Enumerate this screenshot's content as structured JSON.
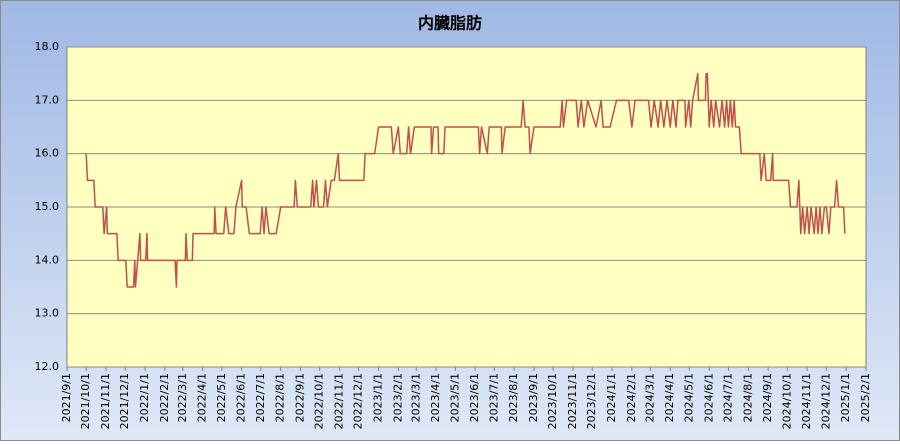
{
  "chart_data": {
    "type": "line",
    "title": "内臓脂肪",
    "color": "#c0504d",
    "grid": true,
    "ylim": [
      12,
      18
    ],
    "yticks": [
      {
        "value": 12,
        "label": "12.0"
      },
      {
        "value": 13,
        "label": "13.0"
      },
      {
        "value": 14,
        "label": "14.0"
      },
      {
        "value": 15,
        "label": "15.0"
      },
      {
        "value": 16,
        "label": "16.0"
      },
      {
        "value": 17,
        "label": "17.0"
      },
      {
        "value": 18,
        "label": "18.0"
      }
    ],
    "xlim": [
      "2021/9/1",
      "2025/2/1"
    ],
    "xticks": [
      "2021/9/1",
      "2021/10/1",
      "2021/11/1",
      "2021/12/1",
      "2022/1/1",
      "2022/2/1",
      "2022/3/1",
      "2022/4/1",
      "2022/5/1",
      "2022/6/1",
      "2022/7/1",
      "2022/8/1",
      "2022/9/1",
      "2022/10/1",
      "2022/11/1",
      "2022/12/1",
      "2023/1/1",
      "2023/2/1",
      "2023/3/1",
      "2023/4/1",
      "2023/5/1",
      "2023/6/1",
      "2023/7/1",
      "2023/8/1",
      "2023/9/1",
      "2023/10/1",
      "2023/11/1",
      "2023/12/1",
      "2024/1/1",
      "2024/2/1",
      "2024/3/1",
      "2024/4/1",
      "2024/5/1",
      "2024/6/1",
      "2024/7/1",
      "2024/8/1",
      "2024/9/1",
      "2024/10/1",
      "2024/11/1",
      "2024/12/1",
      "2025/1/1",
      "2025/2/1"
    ],
    "x": [
      "2021/10/1",
      "2021/10/3",
      "2021/10/13",
      "2021/10/15",
      "2021/10/27",
      "2021/10/29",
      "2021/11/2",
      "2021/11/3",
      "2021/11/18",
      "2021/11/20",
      "2021/12/2",
      "2021/12/4",
      "2021/12/14",
      "2021/12/16",
      "2021/12/17",
      "2021/12/24",
      "2021/12/25",
      "2022/1/2",
      "2022/1/4",
      "2022/1/5",
      "2022/2/17",
      "2022/2/19",
      "2022/2/20",
      "2022/3/5",
      "2022/3/6",
      "2022/3/8",
      "2022/3/16",
      "2022/3/17",
      "2022/4/19",
      "2022/4/20",
      "2022/4/22",
      "2022/5/4",
      "2022/5/7",
      "2022/5/12",
      "2022/5/20",
      "2022/5/23",
      "2022/6/1",
      "2022/6/2",
      "2022/6/8",
      "2022/6/13",
      "2022/6/30",
      "2022/7/3",
      "2022/7/6",
      "2022/7/9",
      "2022/7/14",
      "2022/7/25",
      "2022/8/1",
      "2022/8/22",
      "2022/8/24",
      "2022/8/27",
      "2022/9/17",
      "2022/9/20",
      "2022/9/22",
      "2022/9/26",
      "2022/9/29",
      "2022/10/7",
      "2022/10/10",
      "2022/10/13",
      "2022/10/19",
      "2022/10/24",
      "2022/10/30",
      "2022/11/1",
      "2022/12/9",
      "2022/12/11",
      "2022/12/26",
      "2023/1/1",
      "2023/1/21",
      "2023/1/24",
      "2023/2/1",
      "2023/2/4",
      "2023/2/14",
      "2023/2/17",
      "2023/2/20",
      "2023/2/26",
      "2023/3/24",
      "2023/3/25",
      "2023/3/28",
      "2023/4/4",
      "2023/4/5",
      "2023/4/13",
      "2023/4/15",
      "2023/6/6",
      "2023/6/8",
      "2023/6/11",
      "2023/6/20",
      "2023/6/23",
      "2023/7/12",
      "2023/7/13",
      "2023/7/18",
      "2023/8/12",
      "2023/8/15",
      "2023/8/18",
      "2023/8/24",
      "2023/8/26",
      "2023/9/1",
      "2023/10/12",
      "2023/10/15",
      "2023/10/17",
      "2023/10/22",
      "2023/11/6",
      "2023/11/9",
      "2023/11/14",
      "2023/11/18",
      "2023/11/24",
      "2023/12/7",
      "2023/12/15",
      "2023/12/18",
      "2023/12/29",
      "2024/1/8",
      "2024/1/27",
      "2024/2/1",
      "2024/2/6",
      "2024/2/27",
      "2024/3/2",
      "2024/3/7",
      "2024/3/13",
      "2024/3/17",
      "2024/3/22",
      "2024/3/27",
      "2024/4/1",
      "2024/4/5",
      "2024/4/10",
      "2024/4/13",
      "2024/4/24",
      "2024/4/25",
      "2024/4/30",
      "2024/5/3",
      "2024/5/6",
      "2024/5/14",
      "2024/5/15",
      "2024/5/26",
      "2024/5/27",
      "2024/5/29",
      "2024/6/1",
      "2024/6/4",
      "2024/6/8",
      "2024/6/11",
      "2024/6/17",
      "2024/6/21",
      "2024/6/25",
      "2024/6/28",
      "2024/7/1",
      "2024/7/4",
      "2024/7/7",
      "2024/7/10",
      "2024/7/12",
      "2024/7/18",
      "2024/7/21",
      "2024/8/19",
      "2024/8/21",
      "2024/8/26",
      "2024/8/29",
      "2024/9/5",
      "2024/9/8",
      "2024/9/9",
      "2024/10/3",
      "2024/10/6",
      "2024/10/16",
      "2024/10/19",
      "2024/10/22",
      "2024/10/25",
      "2024/10/28",
      "2024/11/1",
      "2024/11/4",
      "2024/11/7",
      "2024/11/12",
      "2024/11/15",
      "2024/11/18",
      "2024/11/21",
      "2024/11/24",
      "2024/11/28",
      "2024/12/1",
      "2024/12/5",
      "2024/12/8",
      "2024/12/14",
      "2024/12/17",
      "2024/12/20",
      "2024/12/28",
      "2024/12/30"
    ],
    "values": [
      16.0,
      15.5,
      15.5,
      15.0,
      15.0,
      14.5,
      15.0,
      14.5,
      14.5,
      14.0,
      14.0,
      13.5,
      13.5,
      14.0,
      13.5,
      14.5,
      14.0,
      14.0,
      14.5,
      14.0,
      14.0,
      13.5,
      14.0,
      14.0,
      14.5,
      14.0,
      14.0,
      14.5,
      14.5,
      15.0,
      14.5,
      14.5,
      15.0,
      14.5,
      14.5,
      15.0,
      15.5,
      15.0,
      15.0,
      14.5,
      14.5,
      15.0,
      14.5,
      15.0,
      14.5,
      14.5,
      15.0,
      15.0,
      15.5,
      15.0,
      15.0,
      15.5,
      15.0,
      15.5,
      15.0,
      15.0,
      15.5,
      15.0,
      15.5,
      15.5,
      16.0,
      15.5,
      15.5,
      16.0,
      16.0,
      16.5,
      16.5,
      16.0,
      16.5,
      16.0,
      16.0,
      16.5,
      16.0,
      16.5,
      16.5,
      16.0,
      16.5,
      16.5,
      16.0,
      16.0,
      16.5,
      16.5,
      16.0,
      16.5,
      16.0,
      16.5,
      16.5,
      16.0,
      16.5,
      16.5,
      17.0,
      16.5,
      16.5,
      16.0,
      16.5,
      16.5,
      17.0,
      16.5,
      17.0,
      17.0,
      16.5,
      17.0,
      16.5,
      17.0,
      16.5,
      17.0,
      16.5,
      16.5,
      17.0,
      17.0,
      16.5,
      17.0,
      17.0,
      16.5,
      17.0,
      16.5,
      17.0,
      16.5,
      17.0,
      16.5,
      17.0,
      16.5,
      17.0,
      17.0,
      16.5,
      17.0,
      16.5,
      17.0,
      17.5,
      17.0,
      17.0,
      17.5,
      17.5,
      16.5,
      17.0,
      16.5,
      17.0,
      16.5,
      17.0,
      16.5,
      17.0,
      16.5,
      17.0,
      16.5,
      17.0,
      16.5,
      16.5,
      16.0,
      16.0,
      15.5,
      16.0,
      15.5,
      15.5,
      16.0,
      15.5,
      15.5,
      15.0,
      15.0,
      15.5,
      14.5,
      15.0,
      14.5,
      15.0,
      14.5,
      15.0,
      14.5,
      15.0,
      14.5,
      15.0,
      14.5,
      15.0,
      15.0,
      14.5,
      15.0,
      15.0,
      15.5,
      15.0,
      15.0,
      14.5
    ]
  }
}
